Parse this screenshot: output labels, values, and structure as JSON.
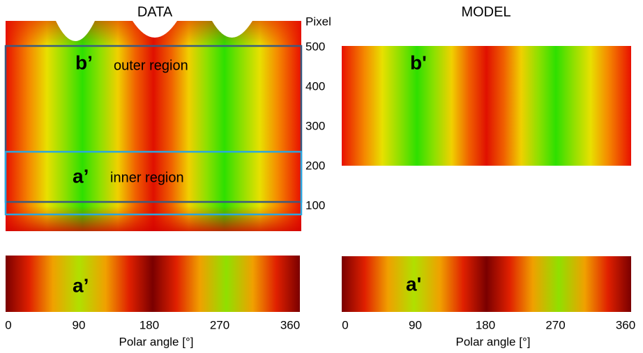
{
  "data_panel": {
    "title": "DATA",
    "y_axis_title": "Pixel",
    "y_ticks": [
      500,
      400,
      300,
      200,
      100
    ],
    "outer_label": "b’",
    "outer_region": "outer region",
    "inner_label": "a’",
    "inner_region": "inner region",
    "bottom_label": "a’",
    "x_ticks": [
      0,
      90,
      180,
      270,
      360
    ],
    "x_axis_title": "Polar angle [°]"
  },
  "model_panel": {
    "title": "MODEL",
    "top_label": "b'",
    "bottom_label": "a'",
    "x_ticks": [
      0,
      90,
      180,
      270,
      360
    ],
    "x_axis_title": "Polar angle [°]"
  }
}
